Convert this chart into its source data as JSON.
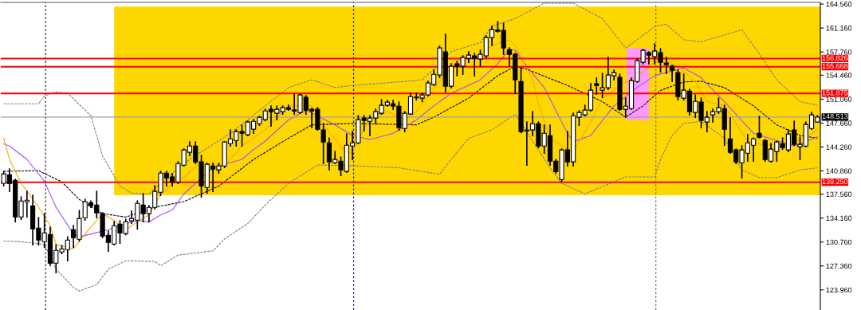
{
  "chart_data": {
    "type": "candlestick",
    "categories": [
      null,
      null,
      null,
      null,
      null,
      null,
      null,
      null,
      null,
      null,
      null,
      null,
      null,
      null,
      null,
      null,
      null,
      null,
      null,
      null,
      null,
      null,
      null,
      null,
      null,
      null,
      null,
      null,
      null,
      null,
      null,
      null,
      null,
      null,
      null,
      null,
      null,
      null,
      null,
      null,
      null,
      null,
      null,
      null,
      null,
      null,
      null,
      null,
      null,
      null,
      null,
      null,
      null,
      null,
      null,
      null,
      null,
      null,
      null,
      null,
      null,
      null,
      null,
      null,
      null,
      null,
      null,
      null,
      null,
      null,
      null,
      null,
      null,
      null,
      null,
      null,
      null,
      null,
      null,
      null,
      null,
      null,
      null,
      null,
      null,
      null,
      null,
      null,
      null,
      null,
      null,
      null,
      null,
      null,
      null,
      null,
      null,
      null,
      null,
      null,
      null,
      null,
      null,
      null,
      null,
      null,
      null,
      null,
      null,
      null,
      null,
      null,
      null,
      null,
      null,
      null,
      null,
      null,
      null,
      null,
      null,
      null,
      null,
      null,
      null,
      null,
      null,
      null,
      null,
      null,
      null,
      null,
      null,
      null,
      null,
      null,
      null,
      null,
      null,
      null,
      null
    ],
    "ohlc": [
      [
        139.08,
        140.78,
        138.74,
        140.44
      ],
      [
        140.32,
        141.12,
        137.95,
        139.08
      ],
      [
        139.53,
        139.65,
        133.64,
        134.32
      ],
      [
        134.32,
        137.15,
        133.98,
        136.58
      ],
      [
        136.47,
        137.95,
        134.32,
        136.7
      ],
      [
        135.91,
        137.38,
        130.36,
        132.62
      ],
      [
        132.74,
        134.21,
        130.36,
        131.04
      ],
      [
        130.81,
        134.78,
        130.02,
        132.06
      ],
      [
        131.83,
        132.85,
        127.41,
        127.75
      ],
      [
        127.75,
        130.36,
        126.4,
        129.57
      ],
      [
        129.34,
        130.25,
        129.12,
        129.79
      ],
      [
        129.68,
        131.49,
        128.09,
        131.04
      ],
      [
        132.51,
        133.08,
        130.02,
        131.38
      ],
      [
        131.15,
        135.23,
        130.93,
        134.1
      ],
      [
        134.21,
        136.81,
        133.87,
        136.47
      ],
      [
        136.36,
        136.58,
        135.68,
        135.91
      ],
      [
        136.02,
        137.95,
        134.21,
        134.89
      ],
      [
        134.78,
        134.89,
        131.38,
        131.61
      ],
      [
        131.72,
        132.29,
        129.45,
        130.7
      ],
      [
        130.47,
        133.64,
        130.36,
        133.08
      ],
      [
        133.3,
        133.76,
        130.59,
        132.06
      ],
      [
        131.95,
        133.98,
        131.8,
        133.64
      ],
      [
        133.76,
        135.12,
        133.42,
        134.1
      ],
      [
        133.87,
        136.58,
        132.62,
        136.25
      ],
      [
        136.02,
        137.61,
        133.64,
        134.78
      ],
      [
        134.78,
        135.91,
        133.64,
        135.68
      ],
      [
        135.68,
        138.74,
        135.46,
        137.95
      ],
      [
        137.83,
        140.78,
        137.38,
        140.55
      ],
      [
        140.55,
        140.78,
        138.74,
        139.87
      ],
      [
        139.99,
        140.44,
        138.74,
        139.3
      ],
      [
        139.3,
        142.14,
        139.08,
        141.91
      ],
      [
        141.68,
        143.95,
        141.57,
        143.84
      ],
      [
        143.5,
        144.97,
        143.04,
        144.4
      ],
      [
        144.4,
        144.97,
        141.91,
        142.14
      ],
      [
        142.14,
        143.04,
        137.15,
        138.74
      ],
      [
        138.51,
        141.91,
        137.72,
        141.8
      ],
      [
        141.57,
        141.91,
        137.95,
        141.12
      ],
      [
        141.01,
        141.91,
        140.55,
        141.57
      ],
      [
        141.57,
        144.97,
        141.35,
        144.97
      ],
      [
        144.74,
        146.67,
        144.4,
        145.42
      ],
      [
        145.19,
        146.67,
        144.4,
        146.44
      ],
      [
        146.44,
        147.35,
        144.4,
        146.21
      ],
      [
        145.99,
        147.91,
        145.87,
        147.8
      ],
      [
        146.78,
        148.14,
        146.21,
        147.91
      ],
      [
        147.57,
        148.6,
        147.35,
        148.48
      ],
      [
        148.14,
        149.61,
        148.0,
        149.38
      ],
      [
        149.61,
        150.06,
        147.23,
        149.27
      ],
      [
        149.05,
        150.06,
        148.14,
        149.61
      ],
      [
        149.27,
        150.06,
        148.93,
        149.84
      ],
      [
        149.84,
        150.18,
        149.5,
        149.61
      ],
      [
        149.53,
        151.76,
        148.93,
        149.35
      ],
      [
        149.16,
        151.76,
        149.05,
        151.65
      ],
      [
        151.31,
        151.54,
        148.93,
        149.5
      ],
      [
        149.61,
        149.7,
        147.0,
        149.38
      ],
      [
        149.61,
        149.84,
        146.67,
        146.78
      ],
      [
        146.67,
        147.57,
        141.91,
        144.97
      ],
      [
        144.85,
        145.53,
        141.0,
        142.14
      ],
      [
        142.02,
        143.61,
        141.91,
        142.48
      ],
      [
        142.25,
        142.82,
        140.21,
        141.0
      ],
      [
        140.78,
        146.1,
        140.67,
        144.51
      ],
      [
        144.4,
        146.44,
        142.48,
        144.85
      ],
      [
        144.85,
        148.7,
        144.74,
        148.14
      ],
      [
        148.37,
        148.7,
        146.55,
        148.03
      ],
      [
        147.91,
        148.7,
        145.87,
        148.37
      ],
      [
        148.37,
        149.61,
        147.57,
        149.27
      ],
      [
        149.05,
        150.97,
        148.93,
        150.18
      ],
      [
        150.18,
        150.86,
        150.06,
        150.63
      ],
      [
        150.4,
        150.86,
        149.61,
        150.06
      ],
      [
        150.06,
        150.63,
        146.67,
        147.0
      ],
      [
        146.89,
        149.27,
        146.44,
        149.05
      ],
      [
        148.93,
        151.88,
        148.93,
        151.42
      ],
      [
        151.35,
        151.88,
        150.97,
        151.25
      ],
      [
        151.2,
        151.88,
        150.74,
        151.65
      ],
      [
        151.65,
        153.57,
        151.54,
        153.35
      ],
      [
        153.12,
        155.16,
        153.0,
        154.59
      ],
      [
        154.48,
        158.56,
        154.14,
        158.33
      ],
      [
        157.77,
        160.26,
        152.1,
        152.9
      ],
      [
        152.9,
        156.07,
        152.67,
        155.73
      ],
      [
        156.07,
        156.4,
        154.37,
        155.73
      ],
      [
        155.73,
        157.2,
        154.59,
        156.97
      ],
      [
        156.86,
        157.77,
        156.29,
        157.31
      ],
      [
        157.2,
        157.54,
        154.37,
        156.86
      ],
      [
        156.75,
        157.99,
        155.73,
        157.43
      ],
      [
        157.2,
        160.03,
        156.97,
        159.8
      ],
      [
        159.8,
        161.39,
        158.67,
        160.94
      ],
      [
        160.9,
        162.07,
        160.6,
        160.7
      ],
      [
        160.82,
        161.84,
        157.43,
        158.33
      ],
      [
        158.1,
        158.33,
        155.73,
        157.43
      ],
      [
        157.43,
        157.54,
        151.88,
        153.8
      ],
      [
        153.57,
        155.5,
        146.3,
        146.44
      ],
      [
        146.67,
        147.8,
        141.68,
        146.55
      ],
      [
        146.67,
        149.27,
        145.87,
        147.57
      ],
      [
        147.57,
        147.8,
        144.17,
        144.4
      ],
      [
        144.4,
        147.35,
        143.38,
        146.21
      ],
      [
        145.87,
        147.35,
        141.68,
        142.25
      ],
      [
        142.25,
        142.48,
        140.55,
        140.78
      ],
      [
        139.64,
        143.95,
        139.42,
        143.84
      ],
      [
        143.84,
        146.44,
        141.57,
        142.14
      ],
      [
        142.14,
        149.05,
        141.57,
        148.7
      ],
      [
        148.48,
        149.38,
        147.35,
        149.16
      ],
      [
        148.82,
        150.18,
        148.7,
        149.5
      ],
      [
        149.5,
        153.24,
        149.38,
        152.33
      ],
      [
        153.24,
        154.03,
        151.76,
        153.0
      ],
      [
        152.33,
        154.71,
        151.31,
        152.67
      ],
      [
        152.67,
        156.97,
        152.44,
        154.48
      ],
      [
        154.37,
        155.16,
        153.8,
        154.82
      ],
      [
        154.14,
        154.59,
        149.5,
        149.61
      ],
      [
        149.61,
        151.2,
        148.48,
        150.06
      ],
      [
        149.72,
        154.03,
        149.61,
        153.69
      ],
      [
        153.57,
        156.75,
        153.46,
        156.52
      ],
      [
        156.29,
        158.1,
        156.07,
        157.99
      ],
      [
        157.65,
        157.77,
        156.07,
        157.31
      ],
      [
        157.09,
        158.9,
        156.07,
        157.88
      ],
      [
        157.65,
        158.22,
        154.93,
        156.29
      ],
      [
        156.18,
        156.97,
        154.71,
        155.95
      ],
      [
        155.73,
        155.84,
        153.57,
        155.16
      ],
      [
        154.82,
        155.16,
        150.97,
        151.42
      ],
      [
        151.2,
        154.59,
        150.97,
        152.33
      ],
      [
        152.21,
        152.44,
        148.82,
        149.27
      ],
      [
        149.16,
        151.65,
        148.48,
        150.74
      ],
      [
        150.63,
        151.2,
        147.0,
        148.03
      ],
      [
        147.8,
        149.27,
        146.44,
        148.48
      ],
      [
        148.82,
        149.61,
        147.8,
        149.27
      ],
      [
        149.27,
        151.2,
        149.05,
        149.84
      ],
      [
        149.72,
        150.18,
        144.51,
        146.78
      ],
      [
        145.42,
        148.37,
        143.38,
        143.5
      ],
      [
        143.84,
        143.95,
        141.91,
        142.14
      ],
      [
        142.02,
        144.4,
        139.87,
        143.84
      ],
      [
        143.38,
        145.99,
        142.25,
        144.85
      ],
      [
        144.51,
        145.53,
        142.25,
        145.42
      ],
      [
        146.21,
        148.59,
        145.53,
        145.65
      ],
      [
        145.19,
        145.31,
        142.25,
        142.48
      ],
      [
        142.25,
        144.74,
        142.14,
        143.95
      ],
      [
        143.61,
        145.08,
        142.25,
        144.97
      ],
      [
        144.74,
        145.53,
        143.95,
        144.17
      ],
      [
        143.84,
        146.67,
        143.61,
        146.1
      ],
      [
        146.67,
        147.91,
        144.51,
        144.63
      ],
      [
        144.29,
        145.65,
        142.48,
        144.63
      ],
      [
        144.4,
        147.8,
        144.29,
        147.46
      ],
      [
        146.89,
        149.16,
        146.78,
        148.82
      ],
      [
        147.8,
        148.7,
        147.8,
        148.51
      ]
    ],
    "series": [
      {
        "type": "line",
        "color": "#808080",
        "line_style": "dashed",
        "values": [
          150.4,
          null,
          null,
          null,
          null,
          null,
          150.4,
          151.5,
          null,
          152.1,
          null,
          151.9,
          null,
          null,
          null,
          148.7,
          null,
          143.0,
          null,
          null,
          138.7,
          null,
          137.7,
          null,
          null,
          137.6,
          null,
          null,
          139.9,
          null,
          null,
          null,
          142.5,
          null,
          null,
          null,
          null,
          null,
          null,
          146.2,
          null,
          null,
          null,
          null,
          null,
          150.1,
          null,
          null,
          null,
          152.7,
          null,
          null,
          null,
          153.8,
          null,
          null,
          null,
          152.7,
          null,
          null,
          153.0,
          null,
          null,
          null,
          null,
          null,
          null,
          null,
          153.5,
          null,
          null,
          null,
          153.8,
          null,
          155.3,
          null,
          null,
          157.8,
          null,
          null,
          null,
          null,
          159.1,
          null,
          161.4,
          null,
          null,
          null,
          162.5,
          null,
          null,
          null,
          null,
          164.7,
          null,
          null,
          null,
          null,
          164.7,
          null,
          null,
          null,
          null,
          162.5,
          null,
          null,
          null,
          158.3,
          null,
          159.5,
          null,
          null,
          161.4,
          null,
          161.7,
          null,
          null,
          159.5,
          null,
          null,
          159.2,
          null,
          null,
          null,
          null,
          null,
          null,
          160.9,
          null,
          null,
          157.5,
          null,
          null,
          153.8,
          null,
          null,
          null,
          150.7,
          null,
          null,
          150.2
        ]
      },
      {
        "type": "line",
        "color": "#808080",
        "line_style": "dashed",
        "values": [
          130.9,
          null,
          null,
          130.8,
          null,
          null,
          null,
          130.4,
          null,
          126.9,
          null,
          null,
          124.3,
          123.8,
          null,
          null,
          124.7,
          null,
          126.9,
          null,
          null,
          128.1,
          null,
          null,
          null,
          null,
          128.0,
          127.4,
          null,
          null,
          128.9,
          null,
          null,
          null,
          null,
          null,
          129.5,
          null,
          131.2,
          null,
          null,
          null,
          133.4,
          null,
          null,
          136.0,
          null,
          null,
          null,
          139.1,
          null,
          null,
          null,
          null,
          141.7,
          null,
          null,
          null,
          null,
          null,
          141.6,
          null,
          null,
          null,
          null,
          null,
          null,
          null,
          141.3,
          null,
          null,
          null,
          null,
          null,
          null,
          140.4,
          null,
          142.5,
          null,
          null,
          145.5,
          null,
          null,
          null,
          146.7,
          null,
          null,
          null,
          148.9,
          null,
          null,
          null,
          null,
          null,
          141.3,
          null,
          139.1,
          null,
          null,
          null,
          137.6,
          null,
          null,
          null,
          null,
          null,
          null,
          140.0,
          null,
          null,
          null,
          null,
          140.0,
          142.5,
          null,
          145.9,
          null,
          147.6,
          null,
          null,
          147.9,
          null,
          146.7,
          null,
          145.5,
          null,
          null,
          141.0,
          null,
          null,
          139.9,
          null,
          null,
          139.9,
          null,
          null,
          null,
          141.0,
          null,
          null,
          141.3
        ]
      },
      {
        "type": "line",
        "color": "#000000",
        "line_style": "dashed",
        "values": [
          140.8,
          null,
          null,
          null,
          null,
          null,
          140.9,
          null,
          null,
          null,
          139.3,
          null,
          null,
          136.8,
          null,
          null,
          null,
          134.8,
          null,
          null,
          null,
          134.3,
          null,
          null,
          null,
          null,
          135.7,
          null,
          null,
          null,
          null,
          136.5,
          null,
          null,
          null,
          null,
          null,
          138.7,
          null,
          null,
          null,
          null,
          null,
          142.5,
          null,
          null,
          null,
          null,
          null,
          145.5,
          null,
          null,
          null,
          147.4,
          null,
          null,
          null,
          null,
          null,
          null,
          147.6,
          null,
          null,
          null,
          null,
          null,
          null,
          null,
          null,
          null,
          null,
          147.4,
          null,
          null,
          148.5,
          null,
          null,
          null,
          null,
          null,
          151.2,
          null,
          null,
          null,
          null,
          154.4,
          null,
          null,
          155.7,
          null,
          155.3,
          null,
          null,
          null,
          null,
          null,
          null,
          153.0,
          null,
          null,
          null,
          null,
          null,
          150.7,
          null,
          null,
          null,
          148.5,
          null,
          null,
          150.1,
          null,
          null,
          152.3,
          null,
          null,
          null,
          153.5,
          null,
          null,
          153.6,
          null,
          null,
          null,
          152.7,
          null,
          null,
          null,
          null,
          150.1,
          null,
          null,
          null,
          147.4,
          null,
          null,
          null,
          145.9,
          null,
          null,
          145.5
        ]
      },
      {
        "type": "line",
        "color": "#a64dff",
        "line_style": "solid",
        "values": [
          144.7,
          144.4,
          null,
          null,
          142.5,
          null,
          null,
          139.4,
          null,
          135.7,
          null,
          null,
          131.9,
          131.5,
          null,
          131.9,
          null,
          null,
          132.5,
          null,
          133.1,
          null,
          null,
          133.8,
          null,
          133.6,
          null,
          134.6,
          null,
          135.3,
          null,
          137.6,
          null,
          null,
          null,
          null,
          141.3,
          null,
          null,
          null,
          null,
          142.5,
          null,
          143.9,
          null,
          145.1,
          null,
          null,
          null,
          148.1,
          null,
          null,
          149.5,
          null,
          null,
          null,
          null,
          147.4,
          null,
          null,
          145.9,
          null,
          null,
          145.3,
          null,
          null,
          null,
          146.2,
          null,
          null,
          null,
          148.1,
          null,
          null,
          150.1,
          null,
          null,
          151.9,
          null,
          null,
          null,
          null,
          153.8,
          null,
          null,
          156.1,
          null,
          158.1,
          158.0,
          null,
          155.7,
          null,
          null,
          152.7,
          null,
          null,
          null,
          146.2,
          145.0,
          null,
          null,
          145.9,
          null,
          null,
          null,
          150.1,
          null,
          null,
          null,
          152.7,
          null,
          null,
          154.4,
          null,
          null,
          null,
          null,
          155.5,
          null,
          null,
          154.1,
          null,
          null,
          null,
          150.7,
          null,
          null,
          null,
          null,
          146.2,
          null,
          null,
          null,
          null,
          null,
          null,
          144.4,
          null,
          null,
          null,
          145.7
        ]
      },
      {
        "type": "line",
        "color": "#ffa500",
        "line_style": "solid",
        "values": [
          145.5,
          142.5,
          null,
          139.1,
          138.0,
          null,
          135.7,
          null,
          133.1,
          130.4,
          null,
          null,
          129.8,
          null,
          131.9,
          null,
          null,
          134.8,
          null,
          133.8,
          null,
          132.5,
          null,
          133.6,
          null,
          134.6,
          null,
          137.6,
          null,
          138.9,
          null,
          140.0,
          null,
          null,
          142.1,
          null,
          141.9,
          null,
          141.7,
          null,
          null,
          144.4,
          null,
          null,
          null,
          146.7,
          null,
          null,
          null,
          150.1,
          null,
          null,
          null,
          150.1,
          null,
          147.4,
          null,
          null,
          null,
          143.3,
          143.6,
          null,
          null,
          148.5,
          null,
          null,
          149.3,
          null,
          null,
          148.1,
          null,
          149.3,
          null,
          151.5,
          null,
          null,
          154.6,
          null,
          156.4,
          null,
          null,
          null,
          157.2,
          null,
          158.7,
          null,
          null,
          159.5,
          158.7,
          null,
          null,
          153.8,
          150.4,
          null,
          145.5,
          null,
          null,
          143.9,
          143.6,
          null,
          null,
          147.8,
          null,
          151.2,
          null,
          null,
          153.0,
          null,
          null,
          null,
          154.9,
          null,
          null,
          157.0,
          null,
          null,
          155.7,
          null,
          null,
          153.5,
          null,
          150.7,
          null,
          null,
          150.1,
          null,
          null,
          null,
          145.1,
          null,
          null,
          144.5,
          null,
          null,
          144.7,
          null,
          null,
          null,
          145.5,
          null,
          146.8
        ]
      }
    ],
    "ref_lines": [
      {
        "axis": "y",
        "value": 156.826,
        "label": "156.826",
        "color": "#ff0000"
      },
      {
        "axis": "y",
        "value": 155.668,
        "label": "155.668",
        "color": "#ff0000"
      },
      {
        "axis": "y",
        "value": 151.875,
        "label": "151.875",
        "color": "#ff0000"
      },
      {
        "axis": "y",
        "value": 139.25,
        "label": "139.250",
        "color": "#ff0000"
      },
      {
        "axis": "y",
        "value": 148.513,
        "label": "148.513",
        "color": "#a0a0a0"
      }
    ],
    "ylim": [
      121.1,
      164.8
    ],
    "yticks": [
      {
        "value": 164.56,
        "label": "164.560"
      },
      {
        "value": 161.16,
        "label": "161.160"
      },
      {
        "value": 157.76,
        "label": "157.760"
      },
      {
        "value": 154.46,
        "label": "154.460"
      },
      {
        "value": 151.06,
        "label": "151.060"
      },
      {
        "value": 147.66,
        "label": "147.660"
      },
      {
        "value": 144.26,
        "label": "144.260"
      },
      {
        "value": 140.86,
        "label": "140.860"
      },
      {
        "value": 137.56,
        "label": "137.560"
      },
      {
        "value": 134.16,
        "label": "134.160"
      },
      {
        "value": 130.76,
        "label": "130.760"
      },
      {
        "value": 127.36,
        "label": "127.360"
      },
      {
        "value": 123.96,
        "label": "123.960"
      }
    ],
    "tick_labels": "y",
    "grid": false
  }
}
